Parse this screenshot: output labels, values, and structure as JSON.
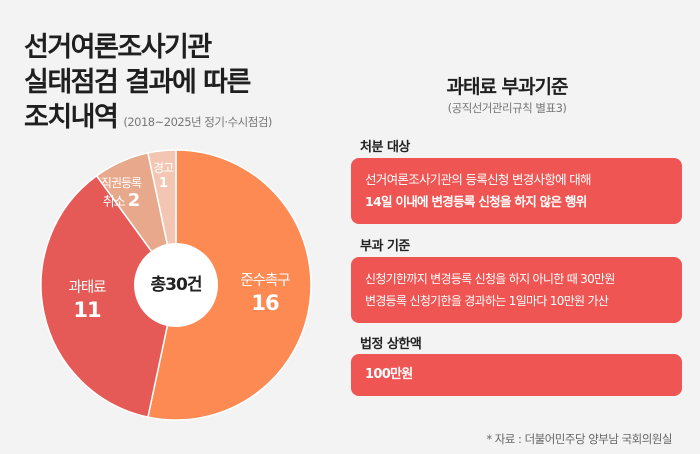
{
  "title_lines": [
    "선거여론조사기관",
    "실태점검 결과에 따른",
    "조치내역"
  ],
  "period": "(2018~2025년 정기·수시점검)",
  "chart_data": {
    "type": "pie",
    "title": "선거여론조사기관 실태점검 결과에 따른 조치내역",
    "center_label": "총30건",
    "total": 30,
    "slices": [
      {
        "label": "준수촉구",
        "value": 16,
        "value_text": "16",
        "color": "#fd8a52"
      },
      {
        "label": "과태료",
        "value": 11,
        "value_text": "11",
        "color": "#e55a56"
      },
      {
        "label": "직권등록 취소",
        "value": 2,
        "value_text": "2",
        "color": "#e7a88b",
        "label_lines": [
          "직권등록",
          "취소"
        ]
      },
      {
        "label": "경고",
        "value": 1,
        "value_text": "1",
        "color": "#f2c6b2"
      }
    ]
  },
  "right": {
    "title": "과태료 부과기준",
    "subtitle": "(공직선거관리규칙 별표3)",
    "sections": [
      {
        "heading": "처분 대상",
        "lines": [
          "선거여론조사기관의 등록신청 변경사항에 대해",
          "14일 이내에 변경등록 신청을 하지 않은 행위"
        ]
      },
      {
        "heading": "부과 기준",
        "lines": [
          "신청기한까지 변경등록 신청을 하지 아니한 때 30만원",
          "변경등록 신청기한을 경과하는 1일마다 10만원 가산"
        ]
      },
      {
        "heading": "법정 상한액",
        "lines": [
          "100만원"
        ]
      }
    ]
  },
  "source": "* 자료 : 더불어민주당 양부남 국회의원실"
}
